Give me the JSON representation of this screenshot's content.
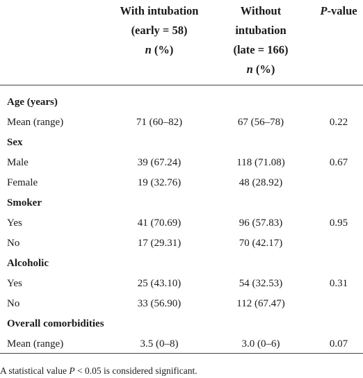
{
  "table": {
    "header": {
      "early": {
        "lines": [
          "With intubation",
          "(early = 58)"
        ],
        "unit": {
          "italic": "n",
          "text": "(%)"
        }
      },
      "late": {
        "lines": [
          "Without",
          "intubation",
          "(late = 166)"
        ],
        "unit": {
          "italic": "n",
          "text": "(%)"
        }
      },
      "p": {
        "italic": "P",
        "text": "-value"
      }
    },
    "sections": [
      {
        "heading": "Age (years)",
        "rows": [
          {
            "label": "Mean (range)",
            "early": "71 (60–82)",
            "late": "67 (56–78)",
            "p": "0.22"
          }
        ]
      },
      {
        "heading": "Sex",
        "rows": [
          {
            "label": "Male",
            "early": "39 (67.24)",
            "late": "118 (71.08)",
            "p": "0.67"
          },
          {
            "label": "Female",
            "early": "19 (32.76)",
            "late": "48 (28.92)"
          }
        ]
      },
      {
        "heading": "Smoker",
        "rows": [
          {
            "label": "Yes",
            "early": "41 (70.69)",
            "late": "96 (57.83)",
            "p": "0.95"
          },
          {
            "label": "No",
            "early": "17 (29.31)",
            "late": "70 (42.17)"
          }
        ]
      },
      {
        "heading": "Alcoholic",
        "rows": [
          {
            "label": "Yes",
            "early": "25 (43.10)",
            "late": "54 (32.53)",
            "p": "0.31"
          },
          {
            "label": "No",
            "early": "33 (56.90)",
            "late": "112 (67.47)"
          }
        ]
      },
      {
        "heading": "Overall comorbidities",
        "rows": [
          {
            "label": "Mean (range)",
            "early": "3.5 (0–8)",
            "late": "3.0 (0–6)",
            "p": "0.07"
          }
        ]
      }
    ],
    "footnote": {
      "before": "A statistical value",
      "italic": "P",
      "after": "< 0.05 is considered significant."
    }
  }
}
